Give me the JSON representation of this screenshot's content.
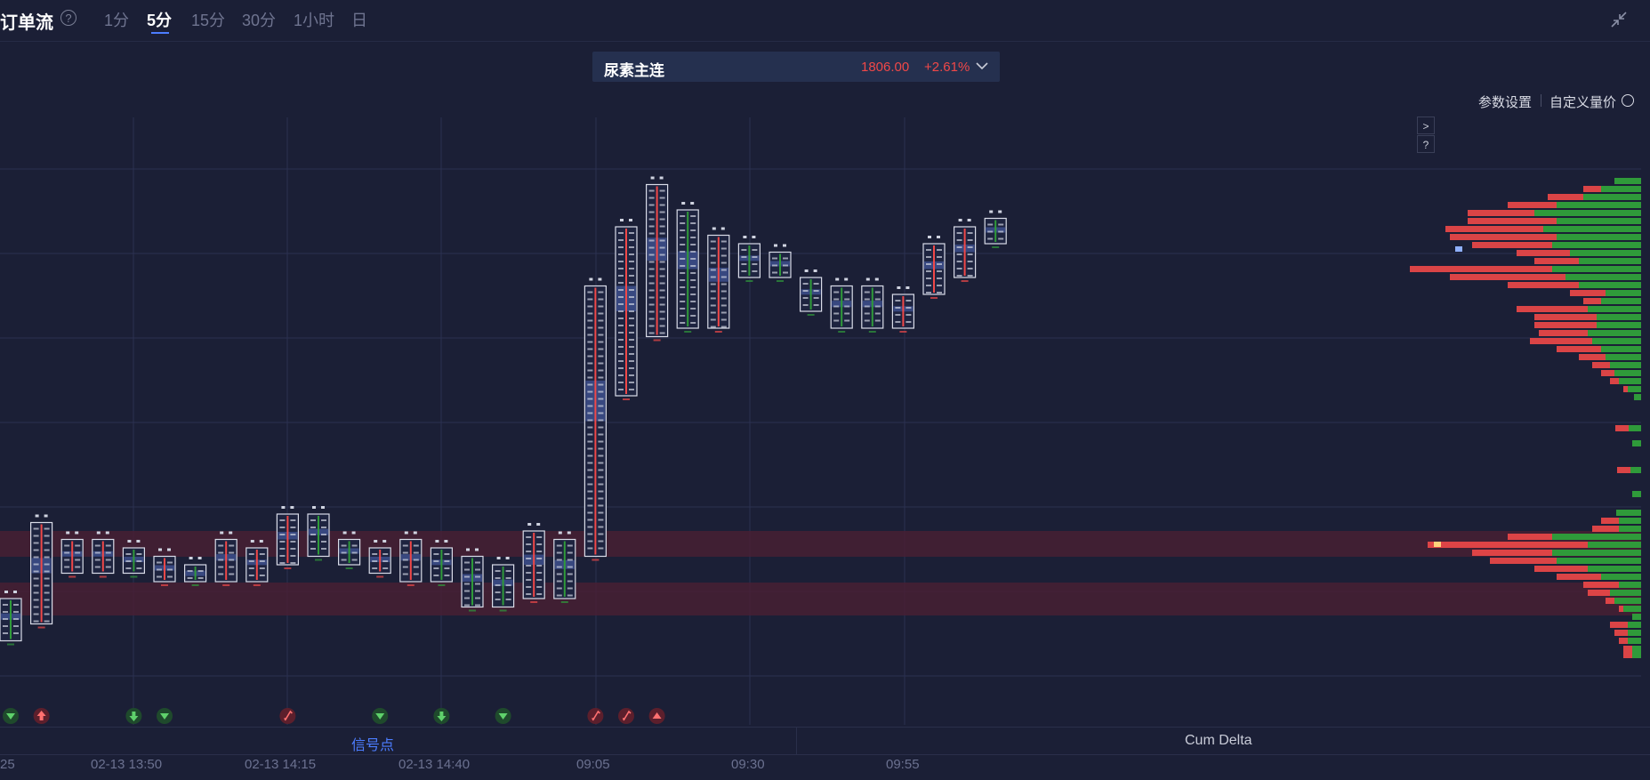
{
  "header": {
    "title": "订单流",
    "help_icon": "question-circle-icon",
    "timeframe_tabs": [
      {
        "label": "1分",
        "active": false
      },
      {
        "label": "5分",
        "active": true
      },
      {
        "label": "15分",
        "active": false
      },
      {
        "label": "30分",
        "active": false
      },
      {
        "label": "1小时",
        "active": false
      },
      {
        "label": "日",
        "active": false
      }
    ],
    "collapse_icon": "collapse-arrows-icon"
  },
  "symbol": {
    "name": "尿素主连",
    "price": "1806.00",
    "change": "+2.61%",
    "dropdown_icon": "chevron-down-icon"
  },
  "toolbar": {
    "settings_label": "参数设置",
    "custom_price_label": "自定义量价",
    "info_icon": "info-circle-icon",
    "expand_label": ">",
    "help_label": "?"
  },
  "bottom_tabs": [
    {
      "label": "信号点",
      "active": true
    },
    {
      "label": "Cum Delta",
      "active": false
    }
  ],
  "time_axis": [
    "25",
    "02-13 13:50",
    "02-13 14:15",
    "02-13 14:40",
    "09:05",
    "09:30",
    "09:55"
  ],
  "colors": {
    "background": "#1b1f36",
    "up": "#f04848",
    "down": "#2f9a3a",
    "accent": "#4c7dff",
    "highlight_band": "#4a1f33"
  },
  "chart_data": {
    "type": "footprint",
    "candles": [
      {
        "lo": 1,
        "hi": 6,
        "dir": "down"
      },
      {
        "lo": 3,
        "hi": 15,
        "dir": "up"
      },
      {
        "lo": 9,
        "hi": 13,
        "dir": "up"
      },
      {
        "lo": 9,
        "hi": 13,
        "dir": "up"
      },
      {
        "lo": 9,
        "hi": 12,
        "dir": "down"
      },
      {
        "lo": 8,
        "hi": 11,
        "dir": "up"
      },
      {
        "lo": 8,
        "hi": 10,
        "dir": "down"
      },
      {
        "lo": 8,
        "hi": 13,
        "dir": "up"
      },
      {
        "lo": 8,
        "hi": 12,
        "dir": "up"
      },
      {
        "lo": 10,
        "hi": 16,
        "dir": "up"
      },
      {
        "lo": 11,
        "hi": 16,
        "dir": "down"
      },
      {
        "lo": 10,
        "hi": 13,
        "dir": "down"
      },
      {
        "lo": 9,
        "hi": 12,
        "dir": "up"
      },
      {
        "lo": 8,
        "hi": 13,
        "dir": "up"
      },
      {
        "lo": 8,
        "hi": 12,
        "dir": "down"
      },
      {
        "lo": 5,
        "hi": 11,
        "dir": "down"
      },
      {
        "lo": 5,
        "hi": 10,
        "dir": "down"
      },
      {
        "lo": 6,
        "hi": 14,
        "dir": "up"
      },
      {
        "lo": 6,
        "hi": 13,
        "dir": "down"
      },
      {
        "lo": 11,
        "hi": 43,
        "dir": "up"
      },
      {
        "lo": 30,
        "hi": 50,
        "dir": "up"
      },
      {
        "lo": 37,
        "hi": 55,
        "dir": "up"
      },
      {
        "lo": 38,
        "hi": 52,
        "dir": "down"
      },
      {
        "lo": 38,
        "hi": 49,
        "dir": "up"
      },
      {
        "lo": 44,
        "hi": 48,
        "dir": "down"
      },
      {
        "lo": 44,
        "hi": 47,
        "dir": "down"
      },
      {
        "lo": 40,
        "hi": 44,
        "dir": "down"
      },
      {
        "lo": 38,
        "hi": 43,
        "dir": "down"
      },
      {
        "lo": 38,
        "hi": 43,
        "dir": "down"
      },
      {
        "lo": 38,
        "hi": 42,
        "dir": "up"
      },
      {
        "lo": 42,
        "hi": 48,
        "dir": "up"
      },
      {
        "lo": 44,
        "hi": 50,
        "dir": "up"
      },
      {
        "lo": 48,
        "hi": 51,
        "dir": "down"
      }
    ],
    "signals": [
      {
        "candle": 0,
        "type": "down-triangle",
        "color": "down"
      },
      {
        "candle": 1,
        "type": "up-arrow",
        "color": "up"
      },
      {
        "candle": 4,
        "type": "down-arrow",
        "color": "down"
      },
      {
        "candle": 5,
        "type": "down-triangle",
        "color": "down"
      },
      {
        "candle": 9,
        "type": "flag",
        "color": "up"
      },
      {
        "candle": 12,
        "type": "down-triangle",
        "color": "down"
      },
      {
        "candle": 14,
        "type": "down-arrow",
        "color": "down"
      },
      {
        "candle": 16,
        "type": "down-triangle",
        "color": "down"
      },
      {
        "candle": 19,
        "type": "flag",
        "color": "up"
      },
      {
        "candle": 20,
        "type": "flag",
        "color": "up"
      },
      {
        "candle": 21,
        "type": "up-triangle",
        "color": "up"
      }
    ]
  }
}
